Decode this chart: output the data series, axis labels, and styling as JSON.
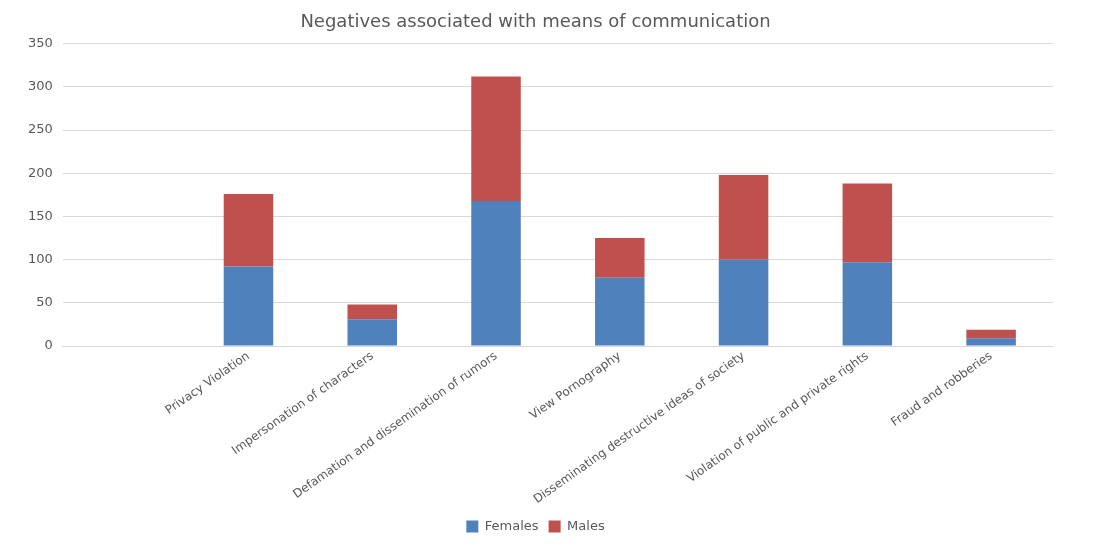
{
  "chart_data": {
    "type": "bar",
    "title": "Negatives associated with means of communication",
    "categories": [
      null,
      "Privacy Violation",
      "Impersonation of characters",
      "Defamation and dissemination of rumors",
      "View Pornography",
      "Disseminating destructive ideas of society",
      "Violation of public and private rights",
      "Fraud and robberies"
    ],
    "stacked": true,
    "series": [
      {
        "name": "Females",
        "color": "#4f81bd",
        "values": [
          null,
          92,
          31,
          168,
          79,
          100,
          97,
          9
        ]
      },
      {
        "name": "Males",
        "color": "#c0504d",
        "values": [
          null,
          84,
          17,
          144,
          46,
          98,
          91,
          10
        ]
      }
    ],
    "ylim": [
      0,
      350
    ],
    "yticks": [
      0,
      50,
      100,
      150,
      200,
      250,
      300,
      350
    ],
    "grid": "y",
    "legend": "bottom"
  }
}
